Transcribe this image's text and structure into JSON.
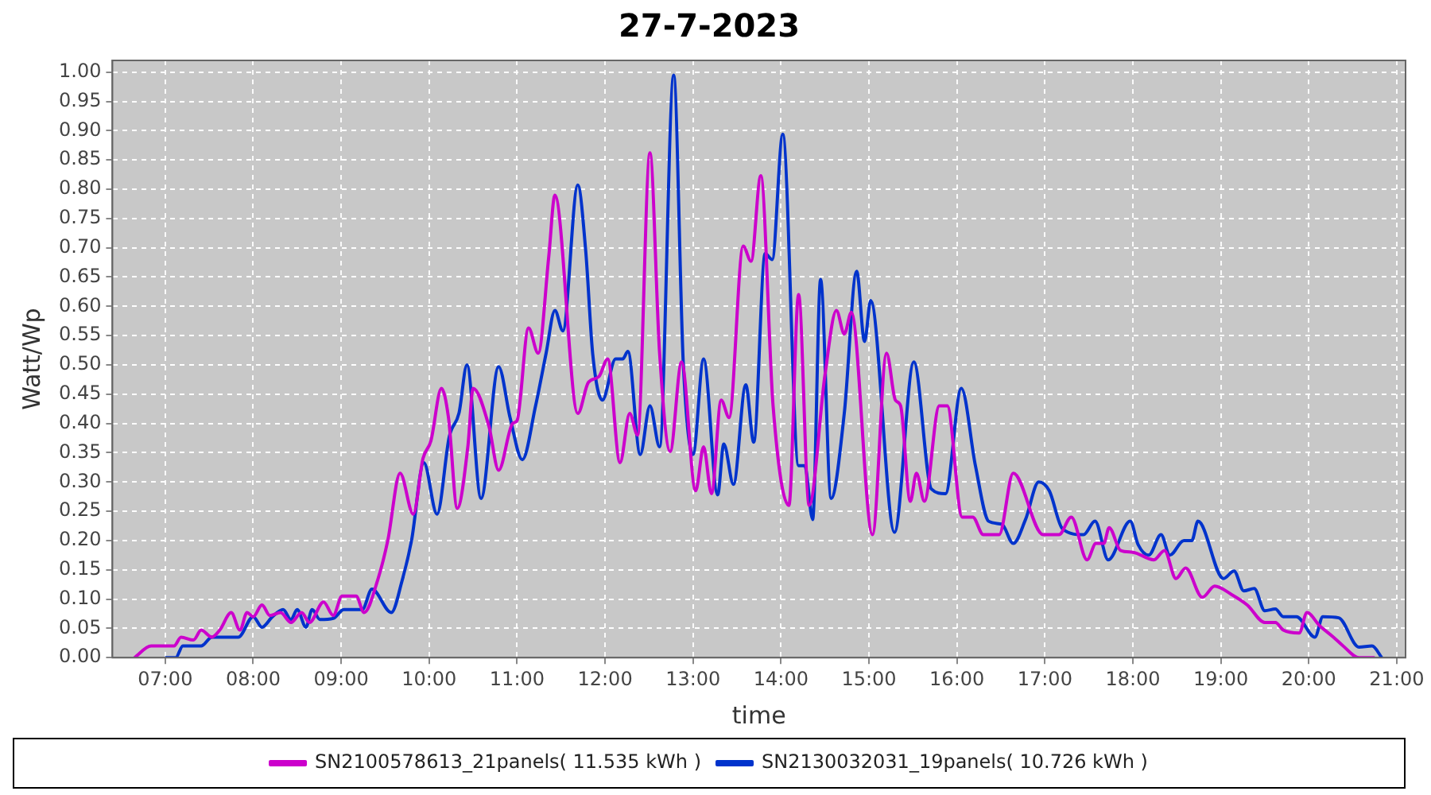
{
  "chart_data": {
    "type": "line",
    "title": "27-7-2023",
    "xlabel": "time",
    "ylabel": "Watt/Wp",
    "xlim": [
      6.4,
      21.1
    ],
    "xticks": [
      {
        "value": 7,
        "label": "07:00"
      },
      {
        "value": 8,
        "label": "08:00"
      },
      {
        "value": 9,
        "label": "09:00"
      },
      {
        "value": 10,
        "label": "10:00"
      },
      {
        "value": 11,
        "label": "11:00"
      },
      {
        "value": 12,
        "label": "12:00"
      },
      {
        "value": 13,
        "label": "13:00"
      },
      {
        "value": 14,
        "label": "14:00"
      },
      {
        "value": 15,
        "label": "15:00"
      },
      {
        "value": 16,
        "label": "16:00"
      },
      {
        "value": 17,
        "label": "17:00"
      },
      {
        "value": 18,
        "label": "18:00"
      },
      {
        "value": 19,
        "label": "19:00"
      },
      {
        "value": 20,
        "label": "20:00"
      },
      {
        "value": 21,
        "label": "21:00"
      }
    ],
    "ylim": [
      0,
      1.02
    ],
    "yticks": [
      {
        "value": 0,
        "label": "0.00"
      },
      {
        "value": 0.05,
        "label": "0.05"
      },
      {
        "value": 0.1,
        "label": "0.10"
      },
      {
        "value": 0.15,
        "label": "0.15"
      },
      {
        "value": 0.2,
        "label": "0.20"
      },
      {
        "value": 0.25,
        "label": "0.25"
      },
      {
        "value": 0.3,
        "label": "0.30"
      },
      {
        "value": 0.35,
        "label": "0.35"
      },
      {
        "value": 0.4,
        "label": "0.40"
      },
      {
        "value": 0.45,
        "label": "0.45"
      },
      {
        "value": 0.5,
        "label": "0.50"
      },
      {
        "value": 0.55,
        "label": "0.55"
      },
      {
        "value": 0.6,
        "label": "0.60"
      },
      {
        "value": 0.65,
        "label": "0.65"
      },
      {
        "value": 0.7,
        "label": "0.70"
      },
      {
        "value": 0.75,
        "label": "0.75"
      },
      {
        "value": 0.8,
        "label": "0.80"
      },
      {
        "value": 0.85,
        "label": "0.85"
      },
      {
        "value": 0.9,
        "label": "0.90"
      },
      {
        "value": 0.95,
        "label": "0.95"
      },
      {
        "value": 1,
        "label": "1.00"
      }
    ],
    "grid": true,
    "legend": "bottom",
    "marker": "none",
    "line_style": "solid",
    "series": [
      {
        "name": "SN2100578613_21panels( 11.535 kWh )",
        "color": "#cc00cc",
        "x": [
          6.65,
          6.84,
          7.1,
          7.18,
          7.32,
          7.41,
          7.53,
          7.62,
          7.75,
          7.85,
          7.93,
          8.0,
          8.1,
          8.19,
          8.31,
          8.43,
          8.55,
          8.64,
          8.8,
          8.91,
          9.01,
          9.17,
          9.26,
          9.42,
          9.53,
          9.67,
          9.82,
          9.93,
          10.02,
          10.14,
          10.22,
          10.32,
          10.44,
          10.5,
          10.68,
          10.79,
          10.95,
          11.0,
          11.13,
          11.24,
          11.36,
          11.43,
          11.69,
          11.81,
          11.93,
          12.03,
          12.17,
          12.28,
          12.37,
          12.51,
          12.62,
          12.74,
          12.87,
          13.03,
          13.12,
          13.21,
          13.32,
          13.41,
          13.57,
          13.66,
          13.77,
          13.91,
          14.09,
          14.2,
          14.32,
          14.5,
          14.63,
          14.72,
          14.8,
          15.04,
          15.2,
          15.3,
          15.36,
          15.47,
          15.54,
          15.63,
          15.8,
          15.89,
          16.06,
          16.18,
          16.3,
          16.48,
          16.64,
          16.98,
          17.16,
          17.3,
          17.48,
          17.58,
          17.67,
          17.73,
          17.86,
          18.0,
          18.24,
          18.36,
          18.49,
          18.6,
          18.79,
          18.93,
          19.12,
          19.3,
          19.5,
          19.62,
          19.71,
          19.89,
          19.98,
          20.12,
          20.28,
          20.39,
          20.57,
          20.75
        ],
        "values": [
          0,
          0.02,
          0.02,
          0.035,
          0.03,
          0.047,
          0.035,
          0.047,
          0.077,
          0.047,
          0.077,
          0.07,
          0.09,
          0.072,
          0.077,
          0.06,
          0.077,
          0.06,
          0.095,
          0.072,
          0.105,
          0.105,
          0.077,
          0.135,
          0.2,
          0.315,
          0.245,
          0.34,
          0.37,
          0.46,
          0.41,
          0.255,
          0.36,
          0.46,
          0.395,
          0.32,
          0.4,
          0.405,
          0.563,
          0.52,
          0.685,
          0.79,
          0.417,
          0.47,
          0.48,
          0.51,
          0.333,
          0.417,
          0.38,
          0.862,
          0.52,
          0.352,
          0.505,
          0.285,
          0.36,
          0.28,
          0.44,
          0.41,
          0.703,
          0.677,
          0.823,
          0.43,
          0.26,
          0.62,
          0.26,
          0.483,
          0.593,
          0.553,
          0.59,
          0.21,
          0.52,
          0.44,
          0.43,
          0.267,
          0.315,
          0.267,
          0.43,
          0.43,
          0.24,
          0.24,
          0.21,
          0.21,
          0.315,
          0.21,
          0.21,
          0.24,
          0.167,
          0.195,
          0.195,
          0.222,
          0.183,
          0.18,
          0.167,
          0.183,
          0.135,
          0.153,
          0.103,
          0.122,
          0.108,
          0.09,
          0.06,
          0.06,
          0.047,
          0.042,
          0.077,
          0.055,
          0.035,
          0.02,
          0,
          0
        ]
      },
      {
        "name": "SN2130032031_19panels( 10.726 kWh )",
        "color": "#0033cc",
        "x": [
          7.0,
          7.12,
          7.2,
          7.41,
          7.53,
          7.83,
          8.0,
          8.1,
          8.22,
          8.34,
          8.43,
          8.5,
          8.6,
          8.67,
          8.76,
          8.91,
          9.03,
          9.24,
          9.35,
          9.57,
          9.69,
          9.8,
          9.94,
          10.09,
          10.23,
          10.34,
          10.43,
          10.59,
          10.79,
          10.92,
          11.06,
          11.21,
          11.33,
          11.43,
          11.52,
          11.69,
          11.78,
          11.86,
          11.97,
          12.12,
          12.2,
          12.26,
          12.4,
          12.51,
          12.62,
          12.78,
          12.89,
          13.0,
          13.12,
          13.28,
          13.35,
          13.46,
          13.6,
          13.69,
          13.82,
          13.9,
          14.02,
          14.2,
          14.27,
          14.36,
          14.45,
          14.57,
          14.72,
          14.86,
          14.95,
          15.02,
          15.29,
          15.51,
          15.71,
          15.87,
          16.05,
          16.21,
          16.36,
          16.51,
          16.64,
          16.78,
          16.93,
          17.05,
          17.2,
          17.44,
          17.57,
          17.72,
          17.97,
          18.06,
          18.18,
          18.32,
          18.42,
          18.58,
          18.67,
          18.74,
          19.03,
          19.15,
          19.26,
          19.38,
          19.5,
          19.62,
          19.71,
          19.86,
          20.07,
          20.16,
          20.34,
          20.57,
          20.72,
          20.83
        ],
        "values": [
          0,
          0,
          0.02,
          0.02,
          0.035,
          0.035,
          0.07,
          0.052,
          0.07,
          0.082,
          0.065,
          0.082,
          0.052,
          0.082,
          0.065,
          0.067,
          0.082,
          0.082,
          0.117,
          0.077,
          0.13,
          0.2,
          0.333,
          0.245,
          0.378,
          0.418,
          0.5,
          0.272,
          0.497,
          0.41,
          0.338,
          0.43,
          0.52,
          0.593,
          0.558,
          0.807,
          0.695,
          0.518,
          0.44,
          0.51,
          0.51,
          0.523,
          0.347,
          0.43,
          0.36,
          0.995,
          0.5,
          0.347,
          0.51,
          0.278,
          0.365,
          0.296,
          0.466,
          0.368,
          0.69,
          0.68,
          0.894,
          0.328,
          0.328,
          0.236,
          0.646,
          0.272,
          0.418,
          0.66,
          0.54,
          0.61,
          0.214,
          0.505,
          0.288,
          0.28,
          0.46,
          0.328,
          0.233,
          0.228,
          0.195,
          0.236,
          0.3,
          0.285,
          0.22,
          0.21,
          0.233,
          0.167,
          0.233,
          0.193,
          0.175,
          0.21,
          0.175,
          0.2,
          0.2,
          0.233,
          0.135,
          0.148,
          0.114,
          0.118,
          0.08,
          0.083,
          0.07,
          0.07,
          0.035,
          0.07,
          0.068,
          0.018,
          0.02,
          0
        ]
      }
    ]
  }
}
